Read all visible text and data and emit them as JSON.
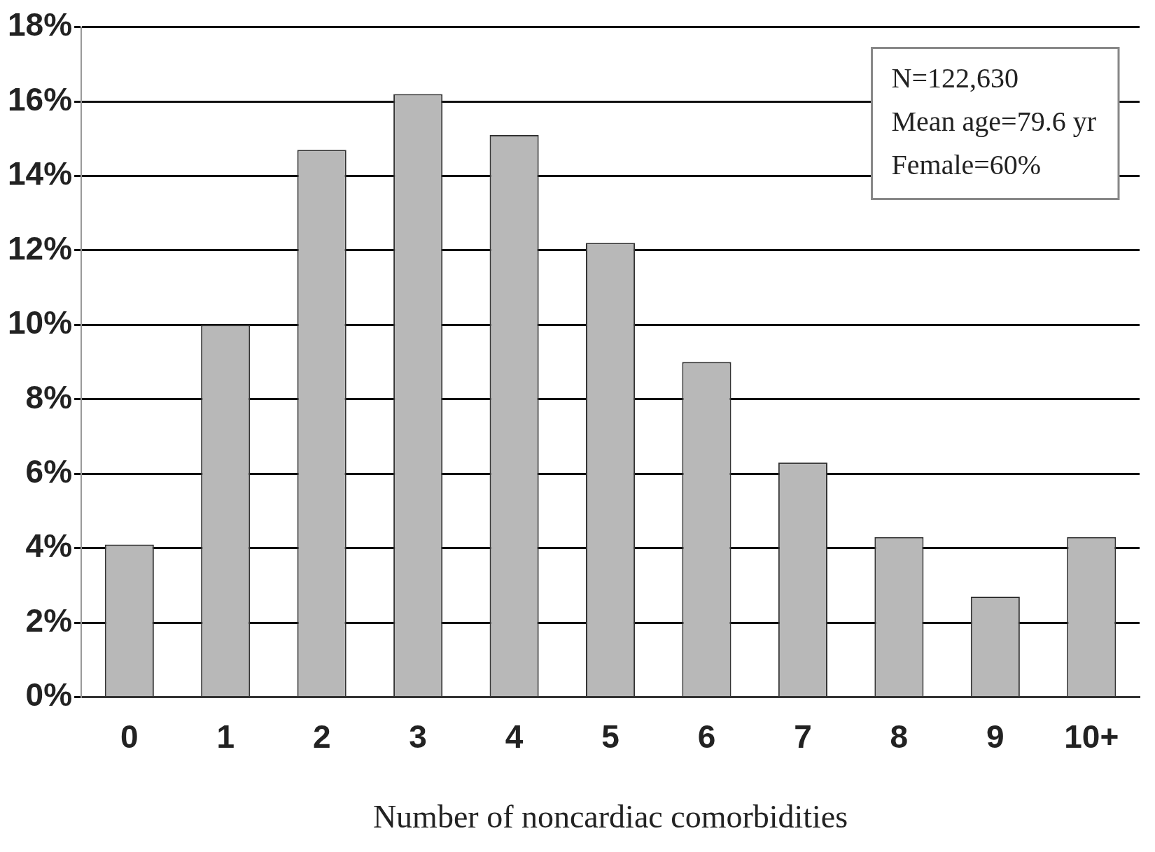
{
  "chart_data": {
    "type": "bar",
    "xlabel": "Number of noncardiac comorbidities",
    "categories": [
      "0",
      "1",
      "2",
      "3",
      "4",
      "5",
      "6",
      "7",
      "8",
      "9",
      "10+"
    ],
    "values": [
      4.1,
      10.0,
      14.7,
      16.2,
      15.1,
      12.2,
      9.0,
      6.3,
      4.3,
      2.7,
      4.3
    ],
    "color": "#b8b8b8",
    "ylim": [
      0,
      18
    ],
    "yticks": [
      {
        "value": 0,
        "label": "0%"
      },
      {
        "value": 2,
        "label": "2%"
      },
      {
        "value": 4,
        "label": "4%"
      },
      {
        "value": 6,
        "label": "6%"
      },
      {
        "value": 8,
        "label": "8%"
      },
      {
        "value": 10,
        "label": "10%"
      },
      {
        "value": 12,
        "label": "12%"
      },
      {
        "value": 14,
        "label": "14%"
      },
      {
        "value": 16,
        "label": "16%"
      },
      {
        "value": 18,
        "label": "18%"
      }
    ],
    "grid": "y",
    "annotations": [
      "N=122,630",
      "Mean age=79.6 yr",
      "Female=60%"
    ]
  }
}
